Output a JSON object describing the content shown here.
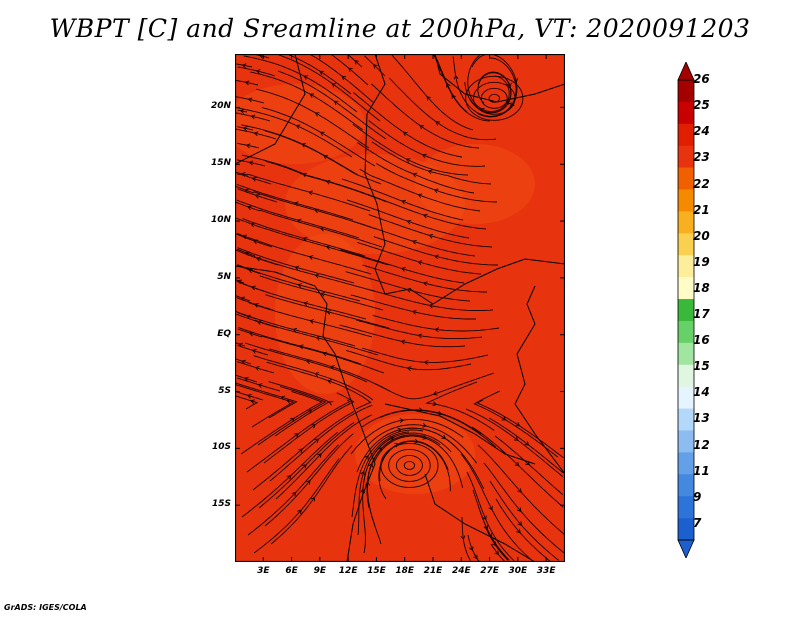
{
  "title": "WBPT [C] and Sreamline at 200hPa, VT: 2020091203",
  "credit": "GrADS: IGES/COLA",
  "map": {
    "fill_color": "#e8340e",
    "warm_patch_color": "#f04a14",
    "line_color": "#1a0000",
    "lat_labels": [
      "20N",
      "15N",
      "10N",
      "5N",
      "EQ",
      "5S",
      "10S",
      "15S"
    ],
    "lat_values": [
      20,
      15,
      10,
      5,
      0,
      -5,
      -10,
      -15
    ],
    "lat_range": [
      -20,
      24.7
    ],
    "lon_labels": [
      "3E",
      "6E",
      "9E",
      "12E",
      "15E",
      "18E",
      "21E",
      "24E",
      "27E",
      "30E",
      "33E"
    ],
    "lon_values": [
      3,
      6,
      9,
      12,
      15,
      18,
      21,
      24,
      27,
      30,
      33
    ],
    "lon_range": [
      0,
      35
    ],
    "vortices": [
      {
        "name": "northeast-anticyclone",
        "lon": 27.5,
        "lat": 20.8
      },
      {
        "name": "southern-anticyclone",
        "lon": 18.5,
        "lat": -11.5
      }
    ]
  },
  "colorbar": {
    "levels": [
      "26",
      "25",
      "24",
      "23",
      "22",
      "21",
      "20",
      "19",
      "18",
      "17",
      "16",
      "15",
      "14",
      "13",
      "12",
      "11",
      "9",
      "7"
    ],
    "colors": [
      "#a50000",
      "#c80000",
      "#e01e00",
      "#e8340e",
      "#f06000",
      "#f58a00",
      "#f8b020",
      "#fad050",
      "#fcee9a",
      "#fffcc8",
      "#3ab83a",
      "#68d068",
      "#a0e6a0",
      "#e0f6e0",
      "#e6f4ff",
      "#b4d8fa",
      "#8cbcf0",
      "#64a0e8",
      "#4488e0",
      "#2c74d8",
      "#1c60d0"
    ]
  }
}
